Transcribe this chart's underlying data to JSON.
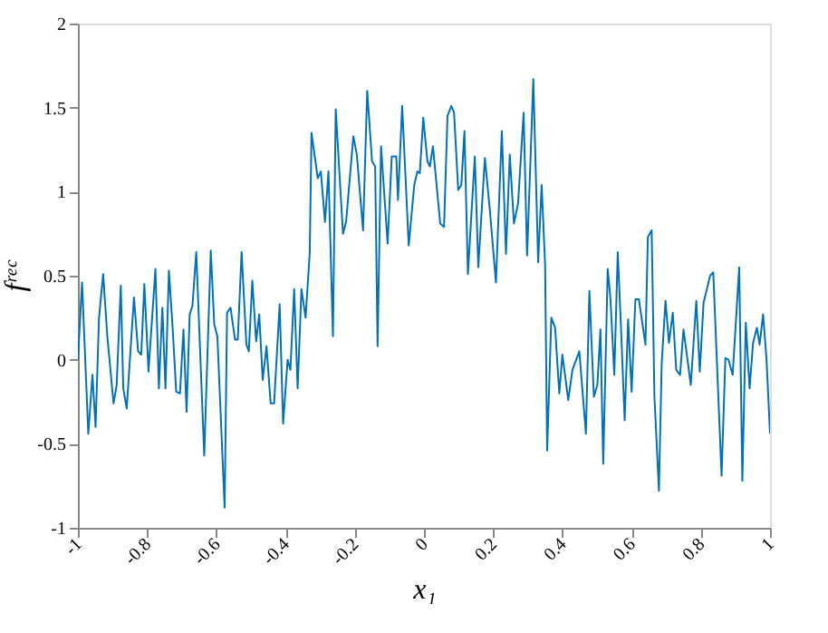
{
  "chart_data": {
    "type": "line",
    "xlabel": "x₁",
    "ylabel": "fʳᵉᶜ",
    "xlim": [
      -1,
      1
    ],
    "ylim": [
      -1,
      2
    ],
    "xticks": [
      -1,
      -0.8,
      -0.6,
      -0.4,
      -0.2,
      0,
      0.2,
      0.4,
      0.6,
      0.8,
      1
    ],
    "yticks": [
      -1,
      -0.5,
      0,
      0.5,
      1,
      1.5,
      2
    ],
    "grid": false,
    "legend": false,
    "marker": "none",
    "line_style": "solid",
    "series": [
      {
        "color": "#0072bd",
        "x": [
          -1.0,
          -0.988,
          -0.97,
          -0.958,
          -0.949,
          -0.939,
          -0.927,
          -0.915,
          -0.897,
          -0.888,
          -0.876,
          -0.869,
          -0.859,
          -0.838,
          -0.826,
          -0.817,
          -0.808,
          -0.796,
          -0.776,
          -0.766,
          -0.756,
          -0.747,
          -0.737,
          -0.726,
          -0.716,
          -0.705,
          -0.695,
          -0.686,
          -0.677,
          -0.669,
          -0.658,
          -0.635,
          -0.616,
          -0.606,
          -0.597,
          -0.576,
          -0.569,
          -0.559,
          -0.546,
          -0.538,
          -0.527,
          -0.513,
          -0.506,
          -0.496,
          -0.485,
          -0.476,
          -0.466,
          -0.455,
          -0.443,
          -0.433,
          -0.417,
          -0.407,
          -0.394,
          -0.386,
          -0.375,
          -0.365,
          -0.354,
          -0.342,
          -0.33,
          -0.325,
          -0.307,
          -0.298,
          -0.286,
          -0.276,
          -0.263,
          -0.255,
          -0.234,
          -0.225,
          -0.204,
          -0.194,
          -0.176,
          -0.164,
          -0.15,
          -0.141,
          -0.134,
          -0.124,
          -0.105,
          -0.093,
          -0.08,
          -0.075,
          -0.063,
          -0.044,
          -0.028,
          -0.019,
          -0.012,
          -0.002,
          0.01,
          0.017,
          0.026,
          0.047,
          0.058,
          0.068,
          0.079,
          0.087,
          0.099,
          0.108,
          0.117,
          0.127,
          0.147,
          0.157,
          0.176,
          0.19,
          0.208,
          0.225,
          0.237,
          0.248,
          0.26,
          0.272,
          0.288,
          0.298,
          0.316,
          0.33,
          0.34,
          0.35,
          0.356,
          0.368,
          0.379,
          0.391,
          0.4,
          0.417,
          0.429,
          0.449,
          0.468,
          0.478,
          0.491,
          0.501,
          0.51,
          0.518,
          0.531,
          0.539,
          0.55,
          0.56,
          0.569,
          0.58,
          0.59,
          0.6,
          0.611,
          0.621,
          0.64,
          0.647,
          0.658,
          0.666,
          0.679,
          0.687,
          0.698,
          0.708,
          0.719,
          0.729,
          0.74,
          0.75,
          0.761,
          0.771,
          0.787,
          0.797,
          0.808,
          0.827,
          0.836,
          0.86,
          0.871,
          0.88,
          0.892,
          0.911,
          0.92,
          0.93,
          0.941,
          0.951,
          0.962,
          0.97,
          0.98,
          0.99,
          1.0
        ],
        "values": [
          0,
          0.46,
          -0.44,
          -0.09,
          -0.4,
          0.25,
          0.51,
          0.14,
          -0.26,
          -0.15,
          0.44,
          -0.17,
          -0.29,
          0.37,
          0.05,
          0.03,
          0.45,
          -0.07,
          0.54,
          -0.17,
          0.31,
          -0.17,
          0.53,
          0.18,
          -0.19,
          -0.2,
          0.18,
          -0.31,
          0.27,
          0.32,
          0.64,
          -0.57,
          0.65,
          0.21,
          0.14,
          -0.88,
          0.28,
          0.31,
          0.12,
          0.12,
          0.64,
          0.09,
          0.05,
          0.47,
          0.11,
          0.27,
          -0.12,
          0.08,
          -0.26,
          -0.26,
          0.33,
          -0.38,
          0.0,
          -0.06,
          0.42,
          -0.17,
          0.42,
          0.25,
          0.64,
          1.35,
          1.08,
          1.12,
          0.82,
          1.12,
          0.14,
          1.49,
          0.75,
          0.82,
          1.33,
          1.22,
          0.77,
          1.6,
          1.18,
          1.15,
          0.08,
          1.27,
          0.69,
          1.21,
          1.21,
          0.95,
          1.51,
          0.68,
          1.04,
          1.12,
          1.11,
          1.44,
          1.18,
          1.15,
          1.27,
          0.81,
          0.79,
          1.45,
          1.51,
          1.47,
          1.01,
          1.04,
          1.36,
          0.51,
          1.21,
          0.55,
          1.2,
          0.9,
          0.46,
          1.36,
          0.63,
          1.22,
          0.81,
          0.93,
          1.47,
          0.62,
          1.67,
          0.58,
          1.04,
          0.57,
          -0.54,
          0.25,
          0.19,
          -0.2,
          0.03,
          -0.24,
          -0.06,
          0.05,
          -0.44,
          0.41,
          -0.22,
          -0.15,
          0.18,
          -0.62,
          0.54,
          0.36,
          -0.09,
          0.64,
          0.21,
          -0.36,
          0.24,
          -0.19,
          0.36,
          0.36,
          0.09,
          0.73,
          0.77,
          -0.22,
          -0.78,
          -0.02,
          0.35,
          0.1,
          0.28,
          -0.06,
          -0.09,
          0.18,
          0.01,
          -0.15,
          0.35,
          -0.07,
          0.34,
          0.5,
          0.52,
          -0.69,
          0.01,
          0.0,
          -0.09,
          0.55,
          -0.72,
          0.22,
          -0.17,
          0.1,
          0.19,
          0.09,
          0.27,
          0.0,
          -0.44
        ]
      }
    ]
  }
}
